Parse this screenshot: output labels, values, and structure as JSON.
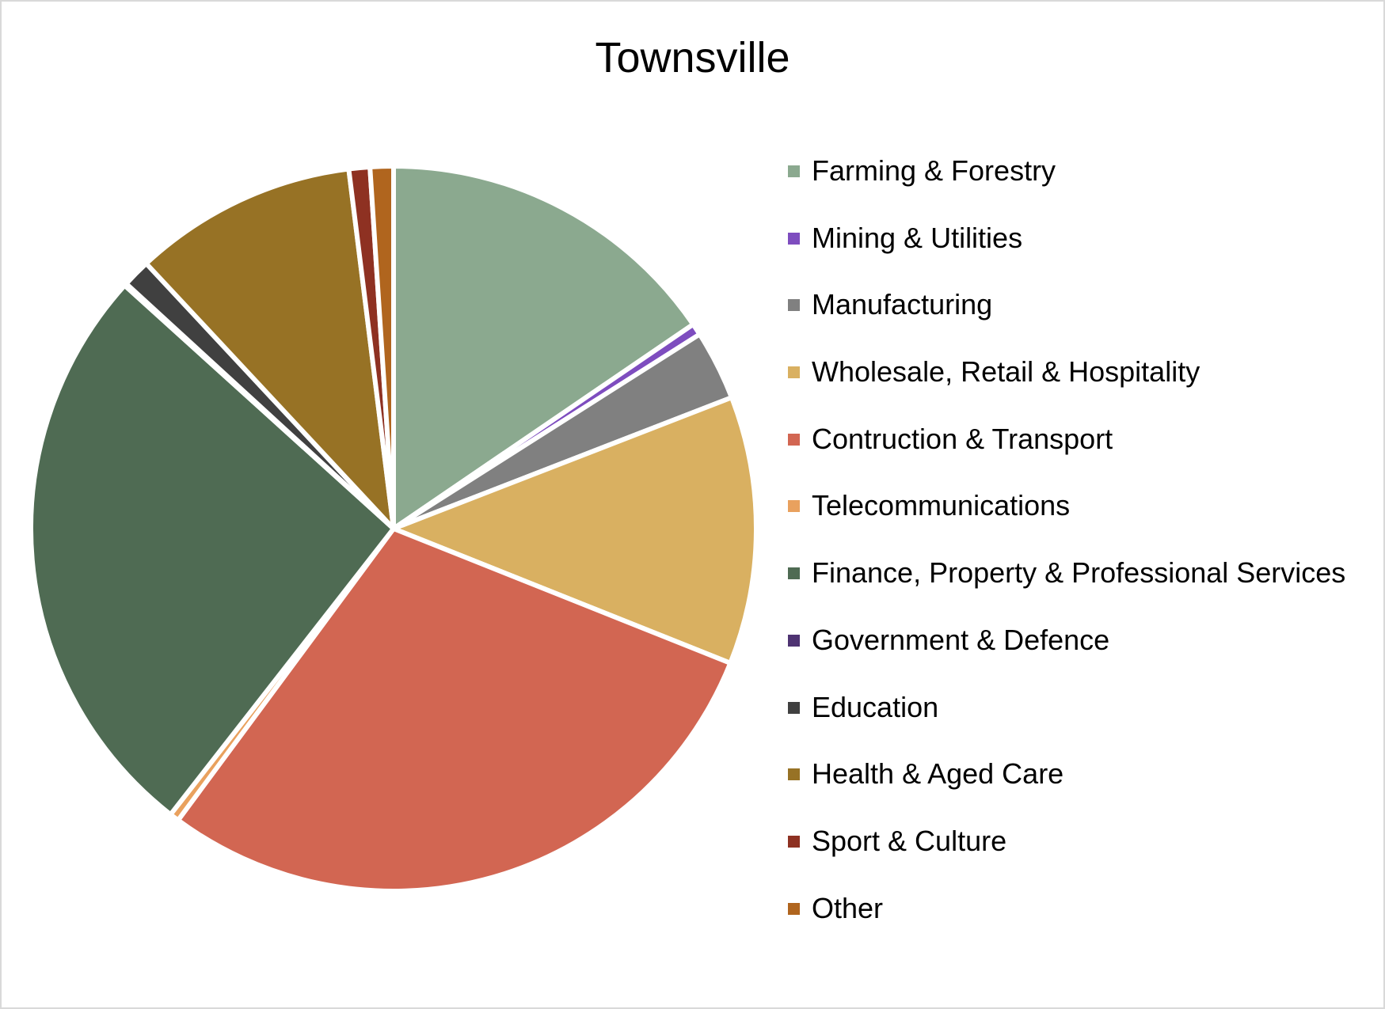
{
  "chart_data": {
    "type": "pie",
    "title": "Townsville",
    "legend_position": "right",
    "slices": [
      {
        "label": "Farming & Forestry",
        "value": 14.9,
        "color": "#8BA98F"
      },
      {
        "label": "Mining & Utilities",
        "value": 0.5,
        "color": "#7E4DBF"
      },
      {
        "label": "Manufacturing",
        "value": 3.0,
        "color": "#808080"
      },
      {
        "label": "Wholesale, Retail & Hospitality",
        "value": 11.5,
        "color": "#D9B061"
      },
      {
        "label": "Contruction & Transport",
        "value": 28.0,
        "color": "#D26652"
      },
      {
        "label": "Telecommunications",
        "value": 0.4,
        "color": "#E9A15E"
      },
      {
        "label": "Finance, Property & Professional Services",
        "value": 25.2,
        "color": "#4F6B53"
      },
      {
        "label": "Government & Defence",
        "value": 0.1,
        "color": "#4E3372"
      },
      {
        "label": "Education",
        "value": 1.2,
        "color": "#404040"
      },
      {
        "label": "Health & Aged Care",
        "value": 9.6,
        "color": "#977225"
      },
      {
        "label": "Sport & Culture",
        "value": 0.9,
        "color": "#8E3122"
      },
      {
        "label": "Other",
        "value": 1.0,
        "color": "#B0651E"
      }
    ]
  }
}
